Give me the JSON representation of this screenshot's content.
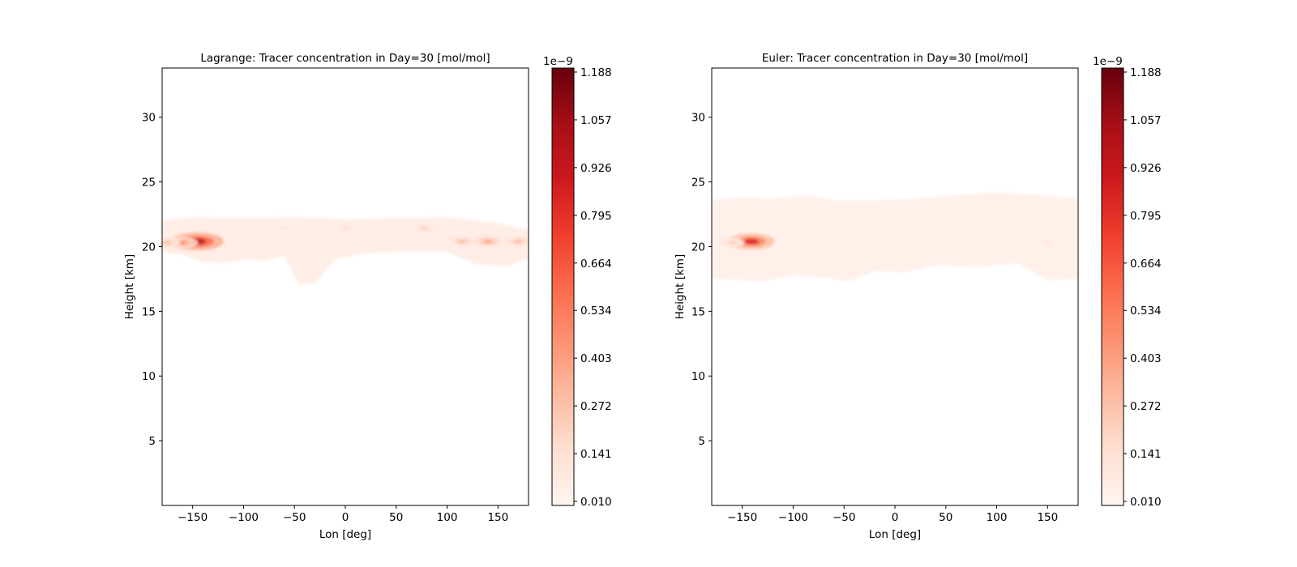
{
  "chart_data": [
    {
      "type": "heatmap",
      "title": "Lagrange: Tracer concentration in Day=30 [mol/mol]",
      "xlabel": "Lon [deg]",
      "ylabel": "Height [km]",
      "xlim": [
        -180,
        180
      ],
      "ylim": [
        0,
        33.8
      ],
      "xticks": [
        -150,
        -100,
        -50,
        0,
        50,
        100,
        150
      ],
      "xtick_labels": [
        "−150",
        "−100",
        "−50",
        "0",
        "50",
        "100",
        "150"
      ],
      "yticks": [
        5,
        10,
        15,
        20,
        25,
        30
      ],
      "ytick_labels": [
        "5",
        "10",
        "15",
        "20",
        "25",
        "30"
      ],
      "colormap": "Reds",
      "colorbar": {
        "min": 0.01,
        "max": 1.188,
        "offset_label": "1e−9",
        "ticks": [
          0.01,
          0.141,
          0.272,
          0.403,
          0.534,
          0.664,
          0.795,
          0.926,
          1.057,
          1.188
        ],
        "tick_labels": [
          "0.010",
          "0.141",
          "0.272",
          "0.403",
          "0.534",
          "0.664",
          "0.795",
          "0.926",
          "1.057",
          "1.188"
        ]
      },
      "plume": {
        "band_top_km": [
          [
            -180,
            22.0
          ],
          [
            -150,
            22.3
          ],
          [
            -100,
            22.2
          ],
          [
            -50,
            22.3
          ],
          [
            0,
            22.1
          ],
          [
            50,
            22.2
          ],
          [
            100,
            22.3
          ],
          [
            150,
            21.8
          ],
          [
            180,
            21.3
          ]
        ],
        "band_bottom_km": [
          [
            -180,
            19.5
          ],
          [
            -160,
            19.4
          ],
          [
            -140,
            18.8
          ],
          [
            -120,
            18.7
          ],
          [
            -100,
            19.0
          ],
          [
            -80,
            18.9
          ],
          [
            -60,
            19.3
          ],
          [
            -45,
            17.0
          ],
          [
            -30,
            17.2
          ],
          [
            -10,
            19.0
          ],
          [
            20,
            19.5
          ],
          [
            60,
            19.6
          ],
          [
            100,
            19.6
          ],
          [
            130,
            18.6
          ],
          [
            160,
            18.5
          ],
          [
            180,
            19.1
          ]
        ],
        "background_value": 0.06,
        "hotspots": [
          {
            "lon": -145,
            "height": 20.4,
            "value": 1.0
          },
          {
            "lon": -160,
            "height": 20.3,
            "value": 0.45
          },
          {
            "lon": -175,
            "height": 20.3,
            "value": 0.3
          },
          {
            "lon": 140,
            "height": 20.4,
            "value": 0.38
          },
          {
            "lon": 115,
            "height": 20.4,
            "value": 0.3
          },
          {
            "lon": 170,
            "height": 20.4,
            "value": 0.3
          },
          {
            "lon": 78,
            "height": 21.4,
            "value": 0.22
          },
          {
            "lon": 0,
            "height": 21.4,
            "value": 0.17
          },
          {
            "lon": -60,
            "height": 21.4,
            "value": 0.12
          }
        ]
      }
    },
    {
      "type": "heatmap",
      "title": "Euler: Tracer concentration in Day=30 [mol/mol]",
      "xlabel": "Lon [deg]",
      "ylabel": "Height [km]",
      "xlim": [
        -180,
        180
      ],
      "ylim": [
        0,
        33.8
      ],
      "xticks": [
        -150,
        -100,
        -50,
        0,
        50,
        100,
        150
      ],
      "xtick_labels": [
        "−150",
        "−100",
        "−50",
        "0",
        "50",
        "100",
        "150"
      ],
      "yticks": [
        5,
        10,
        15,
        20,
        25,
        30
      ],
      "ytick_labels": [
        "5",
        "10",
        "15",
        "20",
        "25",
        "30"
      ],
      "colormap": "Reds",
      "colorbar": {
        "min": 0.01,
        "max": 1.188,
        "offset_label": "1e−9",
        "ticks": [
          0.01,
          0.141,
          0.272,
          0.403,
          0.534,
          0.664,
          0.795,
          0.926,
          1.057,
          1.188
        ],
        "tick_labels": [
          "0.010",
          "0.141",
          "0.272",
          "0.403",
          "0.534",
          "0.664",
          "0.795",
          "0.926",
          "1.057",
          "1.188"
        ]
      },
      "plume": {
        "band_top_km": [
          [
            -180,
            23.6
          ],
          [
            -150,
            23.8
          ],
          [
            -120,
            23.7
          ],
          [
            -90,
            24.0
          ],
          [
            -60,
            23.6
          ],
          [
            -20,
            23.6
          ],
          [
            20,
            23.7
          ],
          [
            60,
            24.0
          ],
          [
            100,
            24.2
          ],
          [
            140,
            24.0
          ],
          [
            180,
            23.7
          ]
        ],
        "band_bottom_km": [
          [
            -180,
            17.5
          ],
          [
            -150,
            17.4
          ],
          [
            -130,
            17.3
          ],
          [
            -100,
            17.8
          ],
          [
            -70,
            17.6
          ],
          [
            -45,
            17.3
          ],
          [
            -20,
            18.1
          ],
          [
            10,
            18.0
          ],
          [
            40,
            18.6
          ],
          [
            80,
            18.4
          ],
          [
            120,
            18.7
          ],
          [
            150,
            17.4
          ],
          [
            180,
            17.5
          ]
        ],
        "background_value": 0.04,
        "hotspots": [
          {
            "lon": -141,
            "height": 20.4,
            "value": 0.85
          },
          {
            "lon": -160,
            "height": 20.3,
            "value": 0.25
          },
          {
            "lon": 150,
            "height": 20.3,
            "value": 0.12
          },
          {
            "lon": 70,
            "height": 21.0,
            "value": 0.08
          }
        ]
      }
    }
  ]
}
